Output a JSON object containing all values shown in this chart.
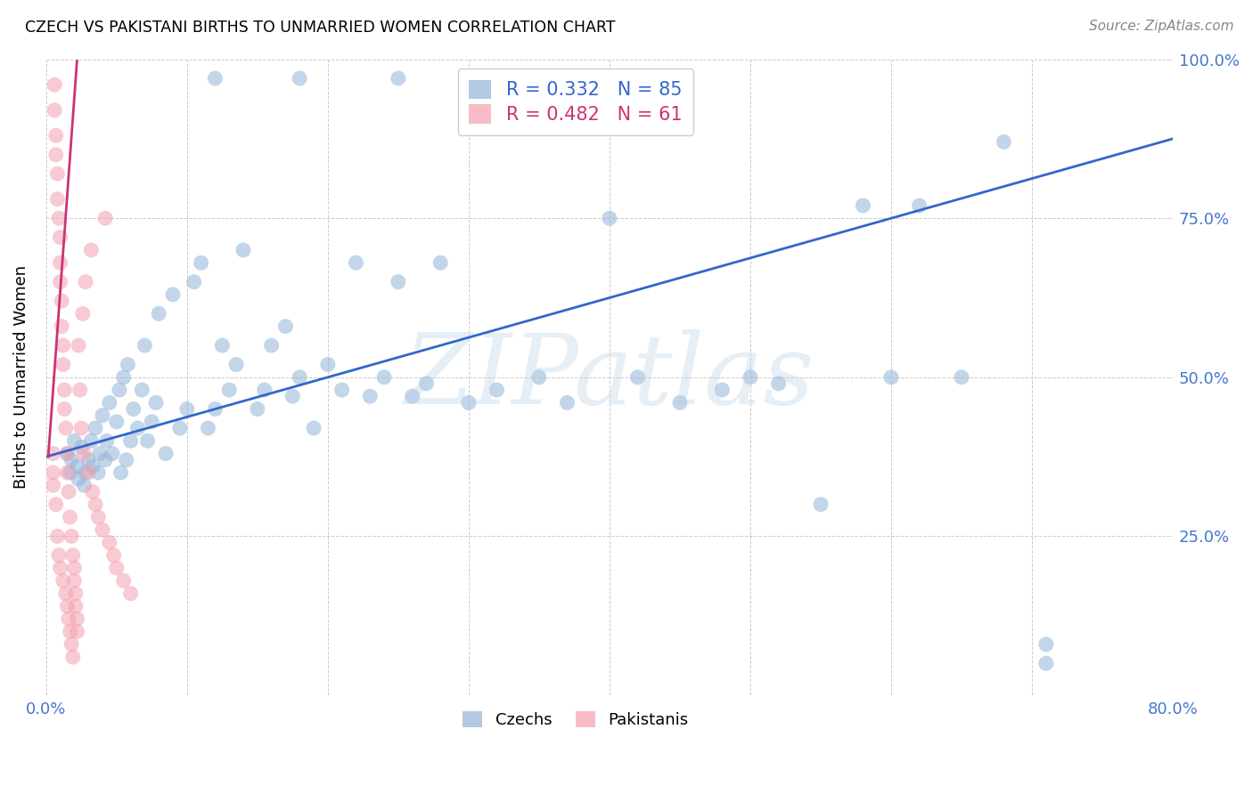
{
  "title": "CZECH VS PAKISTANI BIRTHS TO UNMARRIED WOMEN CORRELATION CHART",
  "source": "Source: ZipAtlas.com",
  "ylabel": "Births to Unmarried Women",
  "watermark": "ZIPatlas",
  "czech_R": 0.332,
  "czech_N": 85,
  "pakistani_R": 0.482,
  "pakistani_N": 61,
  "xlim": [
    0.0,
    0.8
  ],
  "ylim": [
    0.0,
    1.0
  ],
  "blue_color": "#92B4D7",
  "pink_color": "#F4A0B0",
  "trend_blue": "#3366CC",
  "trend_pink": "#CC3377",
  "axis_color": "#4477CC",
  "grid_color": "#CCCCCC",
  "background_color": "#FFFFFF",
  "blue_trend_x": [
    0.0,
    0.8
  ],
  "blue_trend_y": [
    0.375,
    0.875
  ],
  "pink_trend_x": [
    0.0015,
    0.022
  ],
  "pink_trend_y": [
    0.375,
    1.0
  ],
  "czech_x": [
    0.015,
    0.017,
    0.018,
    0.02,
    0.022,
    0.023,
    0.025,
    0.027,
    0.028,
    0.03,
    0.032,
    0.033,
    0.035,
    0.037,
    0.038,
    0.04,
    0.042,
    0.043,
    0.045,
    0.047,
    0.05,
    0.052,
    0.053,
    0.055,
    0.057,
    0.058,
    0.06,
    0.062,
    0.065,
    0.068,
    0.07,
    0.072,
    0.075,
    0.078,
    0.08,
    0.085,
    0.09,
    0.095,
    0.1,
    0.105,
    0.11,
    0.115,
    0.12,
    0.125,
    0.13,
    0.135,
    0.14,
    0.15,
    0.155,
    0.16,
    0.17,
    0.175,
    0.18,
    0.19,
    0.2,
    0.21,
    0.22,
    0.23,
    0.24,
    0.25,
    0.26,
    0.27,
    0.28,
    0.3,
    0.32,
    0.35,
    0.37,
    0.4,
    0.42,
    0.45,
    0.48,
    0.5,
    0.52,
    0.55,
    0.58,
    0.6,
    0.62,
    0.65,
    0.68,
    0.71,
    0.12,
    0.18,
    0.25,
    0.32,
    0.71
  ],
  "czech_y": [
    0.38,
    0.35,
    0.37,
    0.4,
    0.36,
    0.34,
    0.39,
    0.33,
    0.35,
    0.37,
    0.4,
    0.36,
    0.42,
    0.35,
    0.38,
    0.44,
    0.37,
    0.4,
    0.46,
    0.38,
    0.43,
    0.48,
    0.35,
    0.5,
    0.37,
    0.52,
    0.4,
    0.45,
    0.42,
    0.48,
    0.55,
    0.4,
    0.43,
    0.46,
    0.6,
    0.38,
    0.63,
    0.42,
    0.45,
    0.65,
    0.68,
    0.42,
    0.45,
    0.55,
    0.48,
    0.52,
    0.7,
    0.45,
    0.48,
    0.55,
    0.58,
    0.47,
    0.5,
    0.42,
    0.52,
    0.48,
    0.68,
    0.47,
    0.5,
    0.65,
    0.47,
    0.49,
    0.68,
    0.46,
    0.48,
    0.5,
    0.46,
    0.75,
    0.5,
    0.46,
    0.48,
    0.5,
    0.49,
    0.3,
    0.77,
    0.5,
    0.77,
    0.5,
    0.87,
    0.05,
    0.97,
    0.97,
    0.97,
    0.97,
    0.08
  ],
  "pakistani_x": [
    0.005,
    0.005,
    0.005,
    0.006,
    0.006,
    0.007,
    0.007,
    0.007,
    0.008,
    0.008,
    0.008,
    0.009,
    0.009,
    0.01,
    0.01,
    0.01,
    0.01,
    0.011,
    0.011,
    0.012,
    0.012,
    0.012,
    0.013,
    0.013,
    0.014,
    0.014,
    0.015,
    0.015,
    0.015,
    0.016,
    0.016,
    0.017,
    0.017,
    0.018,
    0.018,
    0.019,
    0.019,
    0.02,
    0.02,
    0.021,
    0.021,
    0.022,
    0.022,
    0.023,
    0.024,
    0.025,
    0.026,
    0.027,
    0.028,
    0.03,
    0.032,
    0.033,
    0.035,
    0.037,
    0.04,
    0.042,
    0.045,
    0.048,
    0.05,
    0.055,
    0.06
  ],
  "pakistani_y": [
    0.38,
    0.35,
    0.33,
    0.96,
    0.92,
    0.88,
    0.85,
    0.3,
    0.82,
    0.78,
    0.25,
    0.75,
    0.22,
    0.72,
    0.68,
    0.65,
    0.2,
    0.62,
    0.58,
    0.55,
    0.52,
    0.18,
    0.48,
    0.45,
    0.42,
    0.16,
    0.38,
    0.35,
    0.14,
    0.32,
    0.12,
    0.28,
    0.1,
    0.25,
    0.08,
    0.22,
    0.06,
    0.2,
    0.18,
    0.16,
    0.14,
    0.12,
    0.1,
    0.55,
    0.48,
    0.42,
    0.6,
    0.38,
    0.65,
    0.35,
    0.7,
    0.32,
    0.3,
    0.28,
    0.26,
    0.75,
    0.24,
    0.22,
    0.2,
    0.18,
    0.16
  ]
}
